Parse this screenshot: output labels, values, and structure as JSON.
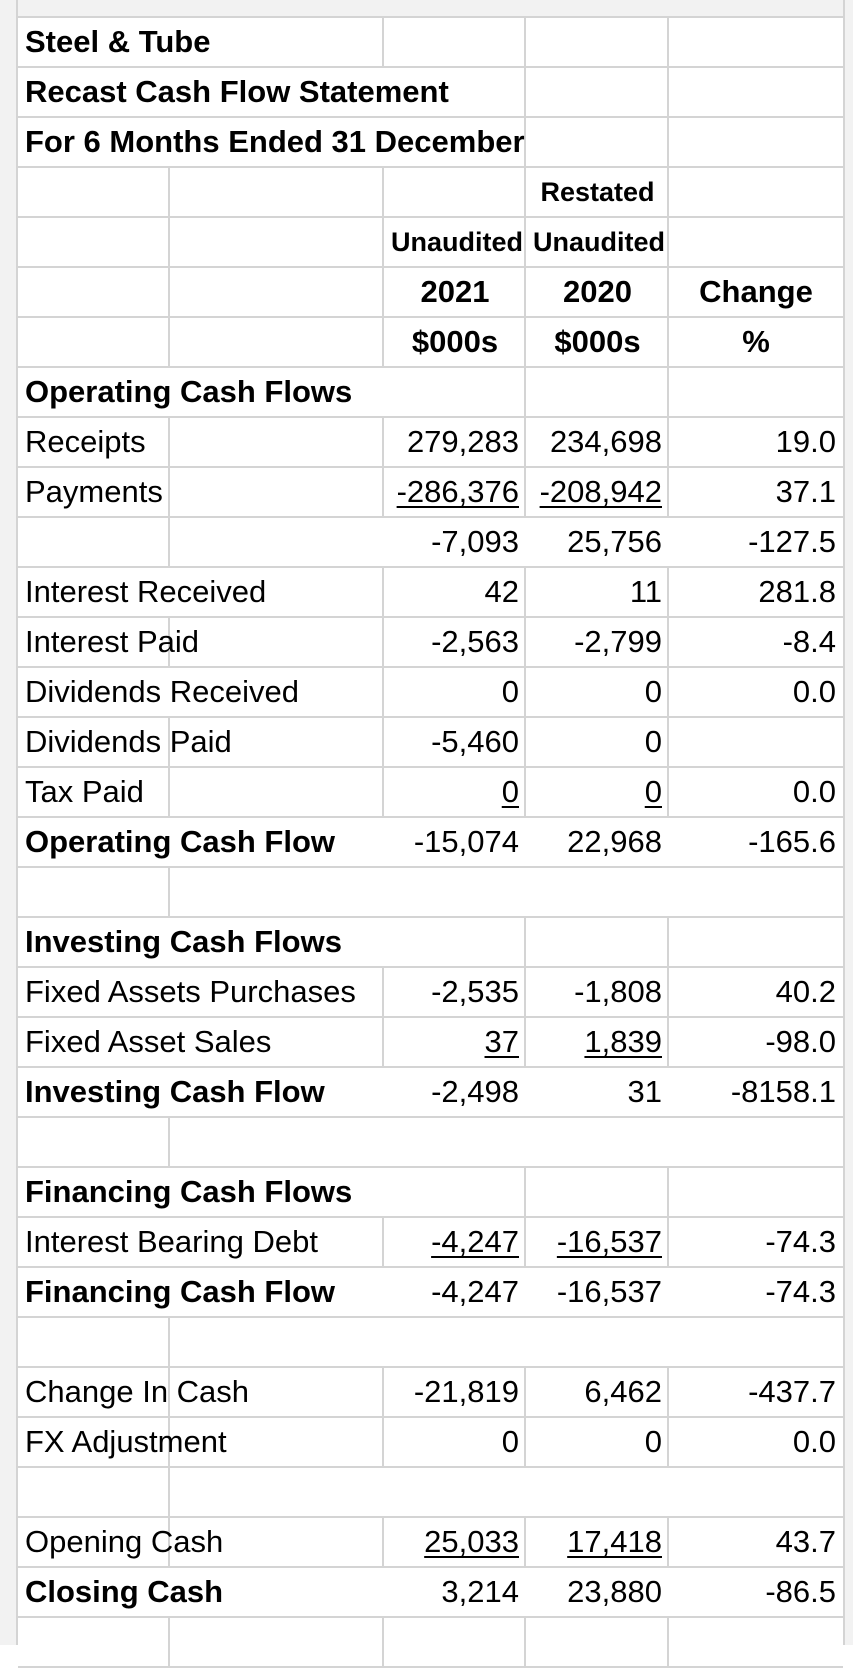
{
  "header": {
    "company": "Steel & Tube",
    "title": "Recast Cash Flow Statement",
    "period": "For 6 Months Ended 31 December",
    "restated": "Restated",
    "unaudited_a": "Unaudited",
    "unaudited_b": "Unaudited",
    "year_a": "2021",
    "year_b": "2020",
    "change": "Change",
    "unit_a": "$000s",
    "unit_b": "$000s",
    "unit_c": "%"
  },
  "rows": [
    {
      "label": "Operating Cash Flows",
      "bold": true,
      "a": "",
      "b": "",
      "c": ""
    },
    {
      "label": "Receipts",
      "a": "279,283",
      "b": "234,698",
      "c": "19.0"
    },
    {
      "label": "Payments",
      "a": "-286,376",
      "b": "-208,942",
      "c": "37.1",
      "ua": true,
      "ub": true
    },
    {
      "label": "",
      "a": "-7,093",
      "b": "25,756",
      "c": "-127.5"
    },
    {
      "label": "Interest Received",
      "a": "42",
      "b": "11",
      "c": "281.8"
    },
    {
      "label": "Interest Paid",
      "a": "-2,563",
      "b": "-2,799",
      "c": "-8.4"
    },
    {
      "label": "Dividends Received",
      "a": "0",
      "b": "0",
      "c": "0.0"
    },
    {
      "label": "Dividends Paid",
      "a": "-5,460",
      "b": "0",
      "c": ""
    },
    {
      "label": "Tax Paid",
      "a": "0",
      "b": "0",
      "c": "0.0",
      "ua": true,
      "ub": true
    },
    {
      "label": "Operating Cash Flow",
      "bold": true,
      "a": "-15,074",
      "b": "22,968",
      "c": "-165.6"
    },
    {
      "label": "",
      "a": "",
      "b": "",
      "c": ""
    },
    {
      "label": "Investing Cash Flows",
      "bold": true,
      "a": "",
      "b": "",
      "c": ""
    },
    {
      "label": "Fixed Assets Purchases",
      "a": "-2,535",
      "b": "-1,808",
      "c": "40.2"
    },
    {
      "label": "Fixed Asset Sales",
      "a": "37",
      "b": "1,839",
      "c": "-98.0",
      "ua": true,
      "ub": true
    },
    {
      "label": "Investing Cash Flow",
      "bold": true,
      "a": "-2,498",
      "b": "31",
      "c": "-8158.1"
    },
    {
      "label": "",
      "a": "",
      "b": "",
      "c": ""
    },
    {
      "label": "Financing Cash Flows",
      "bold": true,
      "a": "",
      "b": "",
      "c": ""
    },
    {
      "label": "Interest Bearing Debt",
      "a": "-4,247",
      "b": "-16,537",
      "c": "-74.3",
      "ua": true,
      "ub": true
    },
    {
      "label": "Financing Cash Flow",
      "bold": true,
      "a": "-4,247",
      "b": "-16,537",
      "c": "-74.3"
    },
    {
      "label": "",
      "a": "",
      "b": "",
      "c": ""
    },
    {
      "label": "Change In Cash",
      "a": "-21,819",
      "b": "6,462",
      "c": "-437.7"
    },
    {
      "label": "FX Adjustment",
      "a": "0",
      "b": "0",
      "c": "0.0"
    },
    {
      "label": "",
      "a": "",
      "b": "",
      "c": ""
    },
    {
      "label": "Opening Cash",
      "a": "25,033",
      "b": "17,418",
      "c": "43.7",
      "ua": true,
      "ub": true
    },
    {
      "label": "Closing Cash",
      "bold": true,
      "a": "3,214",
      "b": "23,880",
      "c": "-86.5"
    }
  ]
}
